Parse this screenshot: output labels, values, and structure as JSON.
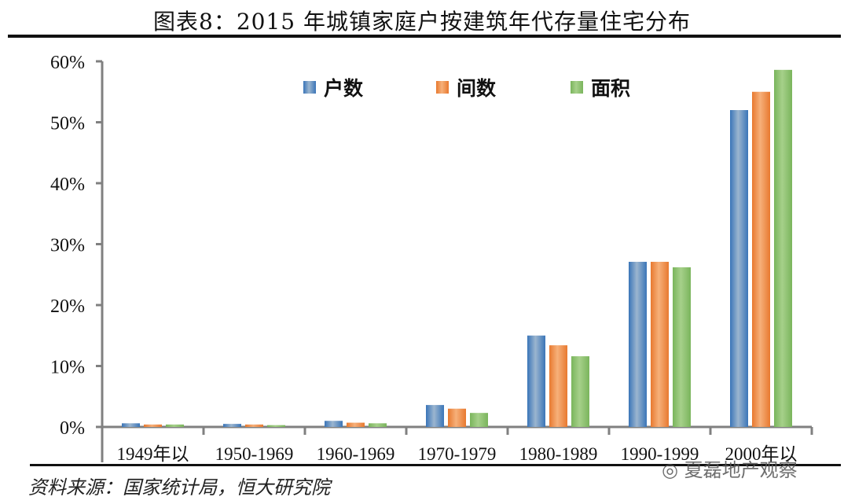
{
  "title": "图表8：2015 年城镇家庭户按建筑年代存量住宅分布",
  "source": "资料来源：国家统计局，恒大研究院",
  "watermark": "夏磊地产观察",
  "chart_data": {
    "type": "bar",
    "title": "图表8：2015 年城镇家庭户按建筑年代存量住宅分布",
    "categories": [
      "1949年以",
      "1950-1969",
      "1960-1969",
      "1970-1979",
      "1980-1989",
      "1990-1999",
      "2000年以"
    ],
    "series": [
      {
        "name": "户数",
        "color": "#3a75b8",
        "values": [
          0.6,
          0.5,
          1.0,
          3.6,
          15.0,
          27.1,
          52.0
        ]
      },
      {
        "name": "间数",
        "color": "#e8792f",
        "values": [
          0.4,
          0.4,
          0.7,
          3.0,
          13.4,
          27.1,
          55.0
        ]
      },
      {
        "name": "面积",
        "color": "#7ab55c",
        "values": [
          0.4,
          0.3,
          0.6,
          2.3,
          11.6,
          26.2,
          58.6
        ]
      }
    ],
    "yticks": [
      "0%",
      "10%",
      "20%",
      "30%",
      "40%",
      "50%",
      "60%"
    ],
    "ylim": [
      0,
      60
    ],
    "legend": "top",
    "grid": false
  }
}
